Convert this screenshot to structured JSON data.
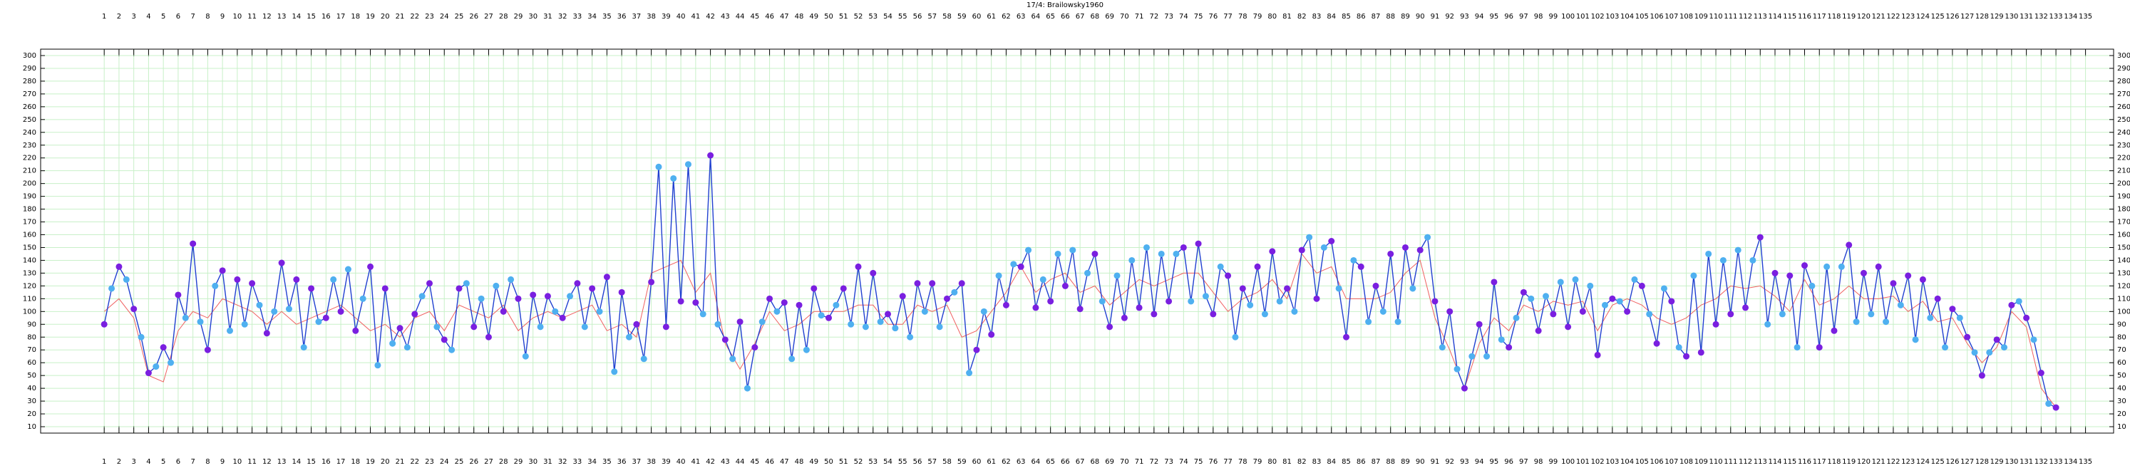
{
  "chart_data": {
    "type": "line",
    "title": "17/4: Brailowsky1960",
    "xlim": [
      -3.3,
      136.9
    ],
    "ylim": [
      5,
      305
    ],
    "xticks": [
      1,
      2,
      3,
      4,
      5,
      6,
      7,
      8,
      9,
      10,
      11,
      12,
      13,
      14,
      15,
      16,
      17,
      18,
      19,
      20,
      21,
      22,
      23,
      24,
      25,
      26,
      27,
      28,
      29,
      30,
      31,
      32,
      33,
      34,
      35,
      36,
      37,
      38,
      39,
      40,
      41,
      42,
      43,
      44,
      45,
      46,
      47,
      48,
      49,
      50,
      51,
      52,
      53,
      54,
      55,
      56,
      57,
      58,
      59,
      60,
      61,
      62,
      63,
      64,
      65,
      66,
      67,
      68,
      69,
      70,
      71,
      72,
      73,
      74,
      75,
      76,
      77,
      78,
      79,
      80,
      81,
      82,
      83,
      84,
      85,
      86,
      87,
      88,
      89,
      90,
      91,
      92,
      93,
      94,
      95,
      96,
      97,
      98,
      99,
      100,
      101,
      102,
      103,
      104,
      105,
      106,
      107,
      108,
      109,
      110,
      111,
      112,
      113,
      114,
      115,
      116,
      117,
      118,
      119,
      120,
      121,
      122,
      123,
      124,
      125,
      126,
      127,
      128,
      129,
      130,
      131,
      132,
      133,
      134,
      135
    ],
    "yticks": [
      10,
      20,
      30,
      40,
      50,
      60,
      70,
      80,
      90,
      100,
      110,
      120,
      130,
      140,
      150,
      160,
      170,
      180,
      190,
      200,
      210,
      220,
      230,
      240,
      250,
      260,
      270,
      280,
      290,
      300
    ],
    "grid": true,
    "grid_color": "#c8f0c8",
    "series": [
      {
        "color": "#2040d0",
        "marker_colors": [
          "#7a1fe0",
          "#4fb0f0"
        ],
        "x": [
          1,
          1.5,
          2,
          2.5,
          3,
          3.5,
          4,
          4.5,
          5,
          5.5,
          6,
          6.5,
          7,
          7.5,
          8,
          8.5,
          9,
          9.5,
          10,
          10.5,
          11,
          11.5,
          12,
          12.5,
          13,
          13.5,
          14,
          14.5,
          15,
          15.5,
          16,
          16.5,
          17,
          17.5,
          18,
          18.5,
          19,
          19.5,
          20,
          20.5,
          21,
          21.5,
          22,
          22.5,
          23,
          23.5,
          24,
          24.5,
          25,
          25.5,
          26,
          26.5,
          27,
          27.5,
          28,
          28.5,
          29,
          29.5,
          30,
          30.5,
          31,
          31.5,
          32,
          32.5,
          33,
          33.5,
          34,
          34.5,
          35,
          35.5,
          36,
          36.5,
          37,
          37.5,
          38,
          38.5,
          39,
          39.5,
          40,
          40.5,
          41,
          41.5,
          42,
          42.5,
          43,
          43.5,
          44,
          44.5,
          45,
          45.5,
          46,
          46.5,
          47,
          47.5,
          48,
          48.5,
          49,
          49.5,
          50,
          50.5,
          51,
          51.5,
          52,
          52.5,
          53,
          53.5,
          54,
          54.5,
          55,
          55.5,
          56,
          56.5,
          57,
          57.5,
          58,
          58.5,
          59,
          59.5,
          60,
          60.5,
          61,
          61.5,
          62,
          62.5,
          63,
          63.5,
          64,
          64.5,
          65,
          65.5,
          66,
          66.5,
          67,
          67.5,
          68,
          68.5,
          69,
          69.5,
          70,
          70.5,
          71,
          71.5,
          72,
          72.5,
          73,
          73.5,
          74,
          74.5,
          75,
          75.5,
          76,
          76.5,
          77,
          77.5,
          78,
          78.5,
          79,
          79.5,
          80,
          80.5,
          81,
          81.5,
          82,
          82.5,
          83,
          83.5,
          84,
          84.5,
          85,
          85.5,
          86,
          86.5,
          87,
          87.5,
          88,
          88.5,
          89,
          89.5,
          90,
          90.5,
          91,
          91.5,
          92,
          92.5,
          93,
          93.5,
          94,
          94.5,
          95,
          95.5,
          96,
          96.5,
          97,
          97.5,
          98,
          98.5,
          99,
          99.5,
          100,
          100.5,
          101,
          101.5,
          102,
          102.5,
          103,
          103.5,
          104,
          104.5,
          105,
          105.5,
          106,
          106.5,
          107,
          107.5,
          108,
          108.5,
          109,
          109.5,
          110,
          110.5,
          111,
          111.5,
          112,
          112.5,
          113,
          113.5,
          114,
          114.5,
          115,
          115.5,
          116,
          116.5,
          117,
          117.5,
          118,
          118.5,
          119,
          119.5,
          120,
          120.5,
          121,
          121.5,
          122,
          122.5,
          123,
          123.5,
          124,
          124.5,
          125,
          125.5,
          126,
          126.5,
          127,
          127.5,
          128,
          128.5,
          129,
          129.5,
          130,
          130.5,
          131,
          131.5,
          132,
          132.5,
          133
        ],
        "values": [
          90,
          118,
          135,
          125,
          102,
          80,
          52,
          57,
          72,
          60,
          113,
          95,
          153,
          92,
          70,
          120,
          132,
          85,
          125,
          90,
          122,
          105,
          83,
          100,
          138,
          102,
          125,
          72,
          118,
          92,
          95,
          125,
          100,
          133,
          85,
          110,
          135,
          58,
          118,
          75,
          87,
          72,
          98,
          112,
          122,
          88,
          78,
          70,
          118,
          122,
          88,
          110,
          80,
          120,
          100,
          125,
          110,
          65,
          113,
          88,
          112,
          100,
          95,
          112,
          122,
          88,
          118,
          100,
          127,
          53,
          115,
          80,
          90,
          63,
          123,
          213,
          88,
          204,
          108,
          215,
          107,
          98,
          222,
          90,
          78,
          63,
          92,
          40,
          72,
          92,
          110,
          100,
          107,
          63,
          105,
          70,
          118,
          97,
          95,
          105,
          118,
          90,
          135,
          88,
          130,
          92,
          98,
          87,
          112,
          80,
          122,
          100,
          122,
          88,
          110,
          115,
          122,
          52,
          70,
          100,
          82,
          128,
          105,
          137,
          135,
          148,
          103,
          125,
          108,
          145,
          120,
          148,
          102,
          130,
          145,
          108,
          88,
          128,
          95,
          140,
          103,
          150,
          98,
          145,
          108,
          145,
          150,
          108,
          153,
          112,
          98,
          135,
          128,
          80,
          118,
          105,
          135,
          98,
          147,
          108,
          118,
          100,
          148,
          158,
          110,
          150,
          155,
          118,
          80,
          140,
          135,
          92,
          120,
          100,
          145,
          92,
          150,
          118,
          148,
          158,
          108,
          72,
          100,
          55,
          40,
          65,
          90,
          65,
          123,
          78,
          72,
          95,
          115,
          110,
          85,
          112,
          98,
          123,
          88,
          125,
          100,
          120,
          66,
          105,
          110,
          108,
          100,
          125,
          120,
          98,
          75,
          118,
          108,
          72,
          65,
          128,
          68,
          145,
          90,
          140,
          98,
          148,
          103,
          140,
          158,
          90,
          130,
          98,
          128,
          72,
          136,
          120,
          72,
          135,
          85,
          135,
          152,
          92,
          130,
          98,
          135,
          92,
          122,
          105,
          128,
          78,
          125,
          95,
          110,
          72,
          102,
          95,
          80,
          68,
          50,
          68,
          78,
          72,
          105,
          108,
          95,
          78,
          52,
          28,
          25
        ]
      },
      {
        "color": "#f06060",
        "x": [
          1,
          2,
          3,
          4,
          5,
          6,
          7,
          8,
          9,
          10,
          11,
          12,
          13,
          14,
          15,
          16,
          17,
          18,
          19,
          20,
          21,
          22,
          23,
          24,
          25,
          26,
          27,
          28,
          29,
          30,
          31,
          32,
          33,
          34,
          35,
          36,
          37,
          38,
          39,
          40,
          41,
          42,
          43,
          44,
          45,
          46,
          47,
          48,
          49,
          50,
          51,
          52,
          53,
          54,
          55,
          56,
          57,
          58,
          59,
          60,
          61,
          62,
          63,
          64,
          65,
          66,
          67,
          68,
          69,
          70,
          71,
          72,
          73,
          74,
          75,
          76,
          77,
          78,
          79,
          80,
          81,
          82,
          83,
          84,
          85,
          86,
          87,
          88,
          89,
          90,
          91,
          92,
          93,
          94,
          95,
          96,
          97,
          98,
          99,
          100,
          101,
          102,
          103,
          104,
          105,
          106,
          107,
          108,
          109,
          110,
          111,
          112,
          113,
          114,
          115,
          116,
          117,
          118,
          119,
          120,
          121,
          122,
          123,
          124,
          125,
          126,
          127,
          128,
          129,
          130,
          131,
          132,
          133
        ],
        "values": [
          100,
          110,
          95,
          50,
          45,
          85,
          100,
          95,
          110,
          105,
          100,
          90,
          100,
          90,
          95,
          100,
          105,
          95,
          85,
          90,
          80,
          95,
          100,
          85,
          105,
          100,
          95,
          105,
          85,
          95,
          100,
          95,
          100,
          105,
          85,
          90,
          80,
          130,
          135,
          140,
          115,
          130,
          75,
          55,
          75,
          100,
          85,
          90,
          100,
          100,
          100,
          105,
          105,
          90,
          90,
          105,
          100,
          105,
          80,
          85,
          100,
          115,
          135,
          115,
          125,
          130,
          115,
          120,
          105,
          115,
          125,
          120,
          125,
          130,
          130,
          115,
          100,
          110,
          115,
          125,
          110,
          145,
          130,
          135,
          110,
          110,
          110,
          115,
          130,
          140,
          95,
          70,
          40,
          75,
          95,
          85,
          105,
          100,
          108,
          105,
          108,
          85,
          105,
          110,
          105,
          95,
          90,
          95,
          105,
          110,
          120,
          118,
          120,
          112,
          100,
          125,
          105,
          110,
          120,
          110,
          110,
          112,
          100,
          108,
          92,
          95,
          75,
          60,
          72,
          100,
          88,
          40,
          25
        ]
      }
    ]
  }
}
